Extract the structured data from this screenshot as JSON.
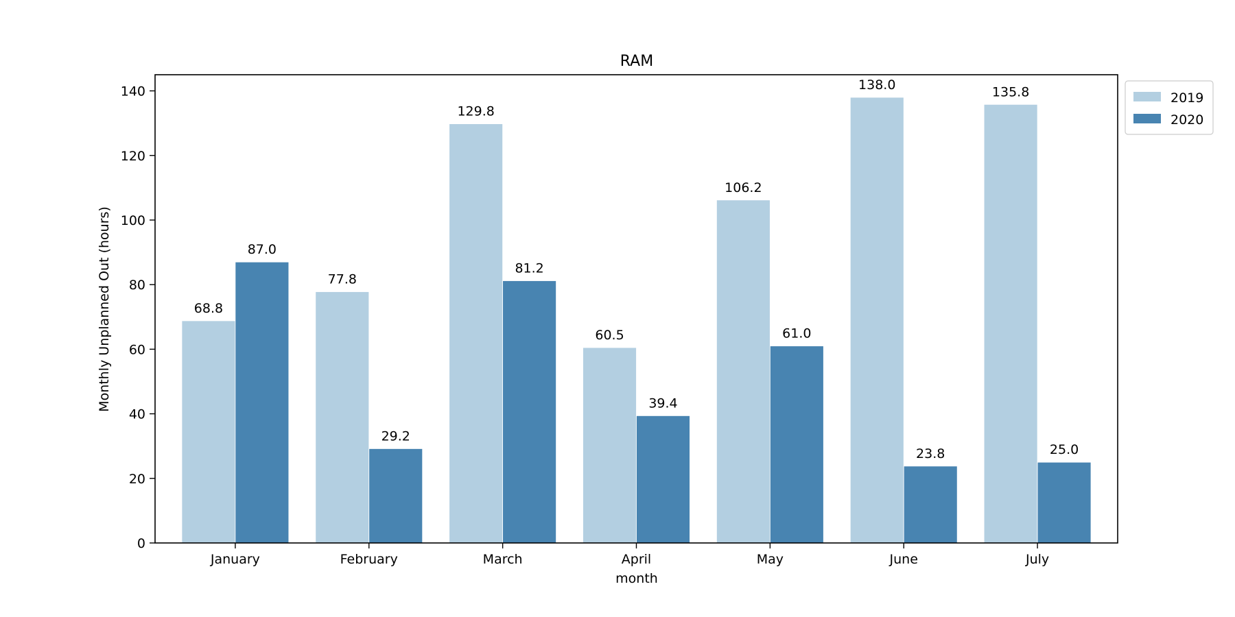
{
  "chart_data": {
    "type": "bar",
    "title": "RAM",
    "xlabel": "month",
    "ylabel": "Monthly Unplanned Out (hours)",
    "categories": [
      "January",
      "February",
      "March",
      "April",
      "May",
      "June",
      "July"
    ],
    "series": [
      {
        "name": "2019",
        "color": "#b3cfe1",
        "values": [
          68.8,
          77.8,
          129.8,
          60.5,
          106.2,
          138.0,
          135.8
        ],
        "labels": [
          "68.8",
          "77.8",
          "129.8",
          "60.5",
          "106.2",
          "138.0",
          "135.8"
        ]
      },
      {
        "name": "2020",
        "color": "#4884b1",
        "values": [
          87.0,
          29.2,
          81.2,
          39.4,
          61.0,
          23.8,
          25.0
        ],
        "labels": [
          "87.0",
          "29.2",
          "81.2",
          "39.4",
          "61.0",
          "23.8",
          "25.0"
        ]
      }
    ],
    "ylim": [
      0,
      145
    ],
    "yticks": [
      0,
      20,
      40,
      60,
      80,
      100,
      120,
      140
    ],
    "ytick_labels": [
      "0",
      "20",
      "40",
      "60",
      "80",
      "100",
      "120",
      "140"
    ],
    "grid": false,
    "legend": {
      "position": "outside-top-right"
    }
  }
}
